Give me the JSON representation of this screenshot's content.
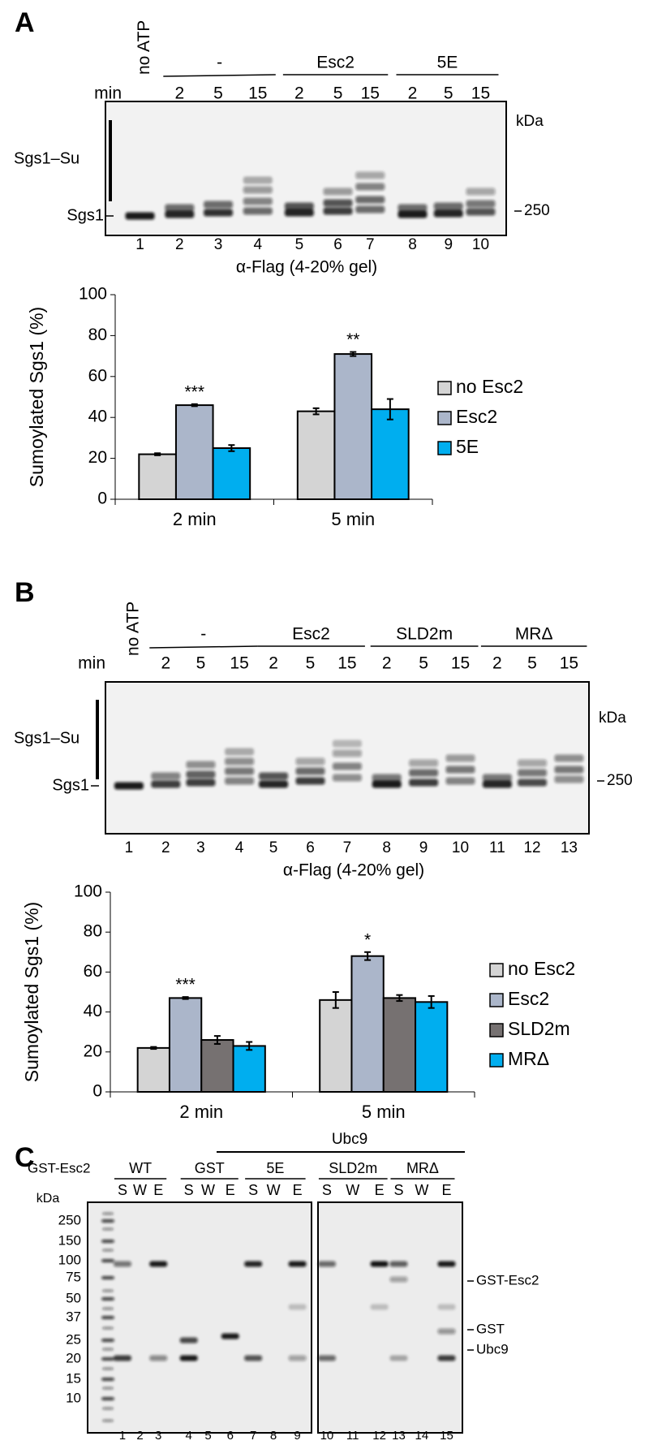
{
  "panel_a": {
    "label": "A",
    "no_atp": "no ATP",
    "min": "min",
    "groups": [
      "-",
      "Esc2",
      "5E"
    ],
    "times": [
      2,
      5,
      15,
      2,
      5,
      15,
      2,
      5,
      15
    ],
    "sgs1_su": "Sgs1–Su",
    "sgs1": "Sgs1",
    "kda": "kDa",
    "marker": 250,
    "lanes": [
      1,
      2,
      3,
      4,
      5,
      6,
      7,
      8,
      9,
      10
    ],
    "antibody": "α-Flag (4-20% gel)"
  },
  "panel_b": {
    "label": "B",
    "no_atp": "no ATP",
    "min": "min",
    "groups": [
      "-",
      "Esc2",
      "SLD2m",
      "MRΔ"
    ],
    "times": [
      2,
      5,
      15,
      2,
      5,
      15,
      2,
      5,
      15,
      2,
      5,
      15
    ],
    "sgs1_su": "Sgs1–Su",
    "sgs1": "Sgs1",
    "kda": "kDa",
    "marker": 250,
    "lanes": [
      1,
      2,
      3,
      4,
      5,
      6,
      7,
      8,
      9,
      10,
      11,
      12,
      13
    ],
    "antibody": "α-Flag (4-20% gel)"
  },
  "panel_c": {
    "label": "C",
    "header": "Ubc9",
    "construct": "GST-Esc2",
    "groups": [
      "WT",
      "GST",
      "5E",
      "SLD2m",
      "MRΔ"
    ],
    "fractions": [
      "S",
      "W",
      "E",
      "S",
      "W",
      "E",
      "S",
      "W",
      "E",
      "S",
      "W",
      "E",
      "S",
      "W",
      "E"
    ],
    "kda": "kDa",
    "markers": [
      250,
      150,
      100,
      75,
      50,
      37,
      25,
      20,
      15,
      10
    ],
    "band_labels": [
      "GST-Esc2",
      "GST",
      "Ubc9"
    ],
    "lanes": [
      1,
      2,
      3,
      4,
      5,
      6,
      7,
      8,
      9,
      10,
      11,
      12,
      13,
      14,
      15
    ]
  },
  "chart_data": [
    {
      "type": "bar",
      "ylabel": "Sumoylated Sgs1 (%)",
      "categories": [
        "2 min",
        "5 min"
      ],
      "series": [
        {
          "name": "no Esc2",
          "color": "#d4d4d4",
          "text_color": "#767171",
          "values": [
            22,
            43
          ],
          "errors": [
            0.5,
            1.5
          ]
        },
        {
          "name": "Esc2",
          "color": "#abb6ca",
          "text_color": "#2e75b6",
          "values": [
            46,
            71
          ],
          "errors": [
            0.5,
            1
          ],
          "annotations": [
            "***",
            "**"
          ]
        },
        {
          "name": "5E",
          "color": "#00aeef",
          "text_color": "#00aeef",
          "values": [
            25,
            44
          ],
          "errors": [
            1.5,
            5
          ]
        }
      ],
      "ylim": [
        0,
        100
      ],
      "yticks": [
        0,
        20,
        40,
        60,
        80,
        100
      ]
    },
    {
      "type": "bar",
      "ylabel": "Sumoylated Sgs1 (%)",
      "categories": [
        "2 min",
        "5 min"
      ],
      "series": [
        {
          "name": "no Esc2",
          "color": "#d4d4d4",
          "text_color": "#767171",
          "values": [
            22,
            46
          ],
          "errors": [
            0.5,
            4
          ]
        },
        {
          "name": "Esc2",
          "color": "#abb6ca",
          "text_color": "#2e75b6",
          "values": [
            47,
            68
          ],
          "errors": [
            0.5,
            2
          ],
          "annotations": [
            "***",
            "*"
          ]
        },
        {
          "name": "SLD2m",
          "color": "#767171",
          "text_color": "#000000",
          "values": [
            26,
            47
          ],
          "errors": [
            2,
            1.5
          ]
        },
        {
          "name": "MRΔ",
          "color": "#00aeef",
          "text_color": "#00aeef",
          "values": [
            23,
            45
          ],
          "errors": [
            2,
            3
          ]
        }
      ],
      "ylim": [
        0,
        100
      ],
      "yticks": [
        0,
        20,
        40,
        60,
        80,
        100
      ]
    }
  ]
}
